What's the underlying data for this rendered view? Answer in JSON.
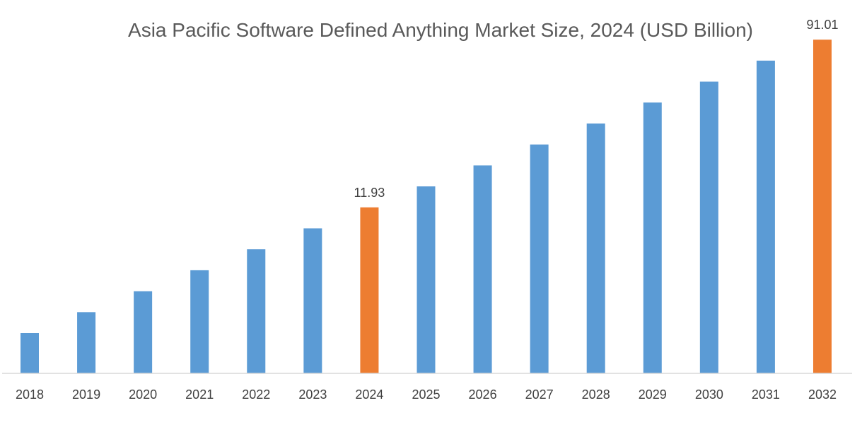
{
  "chart_data": {
    "type": "bar",
    "title": "Asia Pacific Software Defined Anything Market Size, 2024 (USD Billion)",
    "xlabel": "",
    "ylabel": "",
    "categories": [
      "2018",
      "2019",
      "2020",
      "2021",
      "2022",
      "2023",
      "2024",
      "2025",
      "2026",
      "2027",
      "2028",
      "2029",
      "2030",
      "2031",
      "2032"
    ],
    "values": [
      null,
      null,
      null,
      null,
      null,
      null,
      11.93,
      null,
      null,
      null,
      null,
      null,
      null,
      null,
      91.01
    ],
    "data_labels": {
      "2024": "11.93",
      "2032": "91.01"
    },
    "highlighted": [
      "2024",
      "2032"
    ],
    "grid": false,
    "legend": "none",
    "colors": {
      "bar": "#5b9bd5",
      "highlight": "#ed7d31",
      "title": "#595959",
      "axis": "#d9d9d9",
      "tick_label": "#404040"
    }
  }
}
